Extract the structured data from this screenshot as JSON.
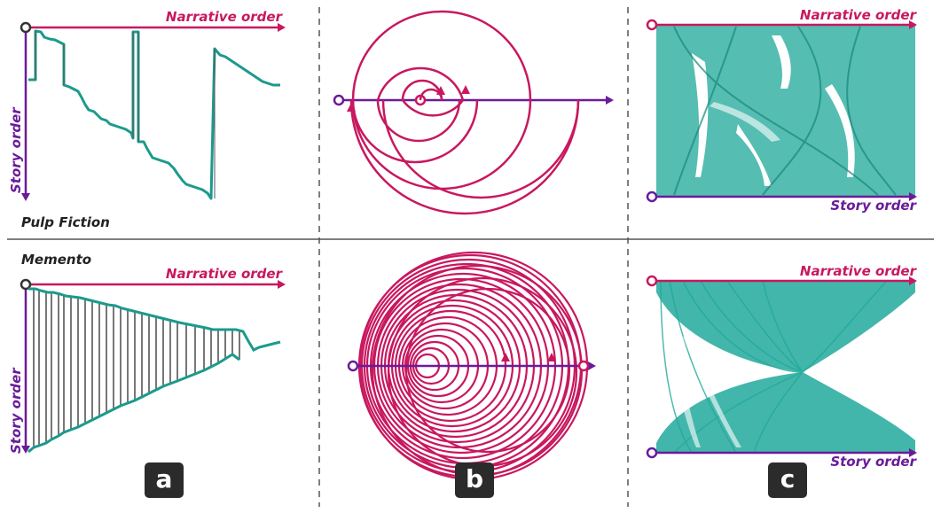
{
  "labels": {
    "narrative_order": "Narrative order",
    "story_order": "Story order"
  },
  "films": {
    "top": "Pulp Fiction",
    "bottom": "Memento"
  },
  "panels": {
    "a": "a",
    "b": "b",
    "c": "c"
  },
  "colors": {
    "magenta": "#c8185f",
    "purple": "#6a1b9a",
    "teal": "#1b9a8c",
    "teal_fill": "#21a99b",
    "gray_line": "#555555"
  }
}
